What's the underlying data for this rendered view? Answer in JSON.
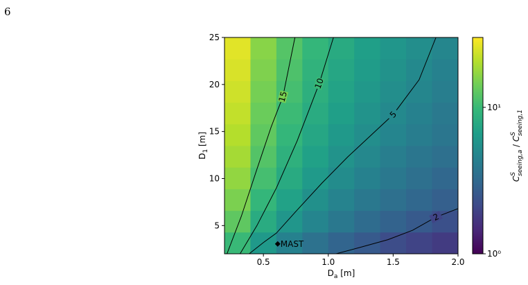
{
  "page_number": "6",
  "chart_data": {
    "type": "heatmap",
    "xlabel": {
      "base": "D",
      "sub": "a",
      "rest": " [m]"
    },
    "ylabel": {
      "base": "D",
      "sub": "1",
      "rest": " [m]"
    },
    "xlim": [
      0.2,
      2.0
    ],
    "ylim": [
      2,
      25
    ],
    "xticks": [
      0.5,
      {
        "value": 1,
        "label": "1.0"
      },
      1.5,
      {
        "value": 2,
        "label": "2.0"
      }
    ],
    "yticks": [
      5,
      10,
      15,
      20,
      25
    ],
    "x_edges": [
      0.2,
      0.4,
      0.6,
      0.8,
      1.0,
      1.2,
      1.4,
      1.6,
      1.8,
      2.0
    ],
    "y_edges": [
      2,
      4.3,
      6.6,
      8.9,
      11.2,
      13.5,
      15.8,
      18.1,
      20.4,
      22.7,
      25
    ],
    "z": [
      [
        9.9,
        6.2,
        4.5,
        3.6,
        3.0,
        2.6,
        2.2,
        2.0,
        1.8
      ],
      [
        12.8,
        8.0,
        5.9,
        4.7,
        3.9,
        3.3,
        2.9,
        2.6,
        2.3
      ],
      [
        15.2,
        9.5,
        7.0,
        5.5,
        4.6,
        3.9,
        3.5,
        3.1,
        2.8
      ],
      [
        17.2,
        10.8,
        7.9,
        6.3,
        5.2,
        4.5,
        3.9,
        3.5,
        3.1
      ],
      [
        19.0,
        11.9,
        8.7,
        6.9,
        5.7,
        4.9,
        4.3,
        3.8,
        3.5
      ],
      [
        20.6,
        12.9,
        9.5,
        7.5,
        6.2,
        5.3,
        4.7,
        4.2,
        3.8
      ],
      [
        22.1,
        13.8,
        10.1,
        8.0,
        6.7,
        5.7,
        5.0,
        4.5,
        4.0
      ],
      [
        23.5,
        14.7,
        10.8,
        8.5,
        7.1,
        6.1,
        5.3,
        4.8,
        4.3
      ],
      [
        24.8,
        15.5,
        11.4,
        9.0,
        7.5,
        6.4,
        5.6,
        5.0,
        4.5
      ],
      [
        26.0,
        16.3,
        12.0,
        9.5,
        7.9,
        6.7,
        5.9,
        5.3,
        4.8
      ]
    ],
    "colormap": "viridis",
    "clim": [
      1,
      30
    ],
    "color_scale": "log",
    "cbar_ticks": [
      {
        "value": 1,
        "label": "10⁰"
      },
      {
        "value": 10,
        "label": "10¹"
      }
    ],
    "cbar_label": {
      "num": {
        "base": "C",
        "sup": "S",
        "sub": "seeing,a"
      },
      "sep": " / ",
      "den": {
        "base": "C",
        "sup": "S",
        "sub": "seeing,1"
      }
    },
    "contours": [
      {
        "level": 15,
        "color": "#000000",
        "x": [
          0.219,
          0.33,
          0.45,
          0.56,
          0.65,
          0.743
        ],
        "y": [
          2,
          6,
          11,
          15.5,
          18.7,
          25
        ]
      },
      {
        "level": 10,
        "color": "#000000",
        "x": [
          0.32,
          0.45,
          0.6,
          0.76,
          0.93,
          1.04
        ],
        "y": [
          2,
          5,
          9,
          14,
          20.1,
          25
        ]
      },
      {
        "level": 5,
        "color": "#000000",
        "x": [
          0.39,
          0.5,
          0.6,
          0.75,
          0.95,
          1.15,
          1.5,
          1.7,
          1.83
        ],
        "y": [
          2,
          3.2,
          4.2,
          6.5,
          9.5,
          12.3,
          16.8,
          20.5,
          25
        ]
      },
      {
        "level": 2,
        "color": "#000000",
        "x": [
          1.06,
          1.25,
          1.46,
          1.65,
          1.83,
          2.0
        ],
        "y": [
          2,
          2.7,
          3.5,
          4.5,
          5.9,
          6.8
        ]
      }
    ],
    "annotations": [
      {
        "text": "MAST",
        "x": 0.61,
        "y": 3.05
      }
    ]
  }
}
